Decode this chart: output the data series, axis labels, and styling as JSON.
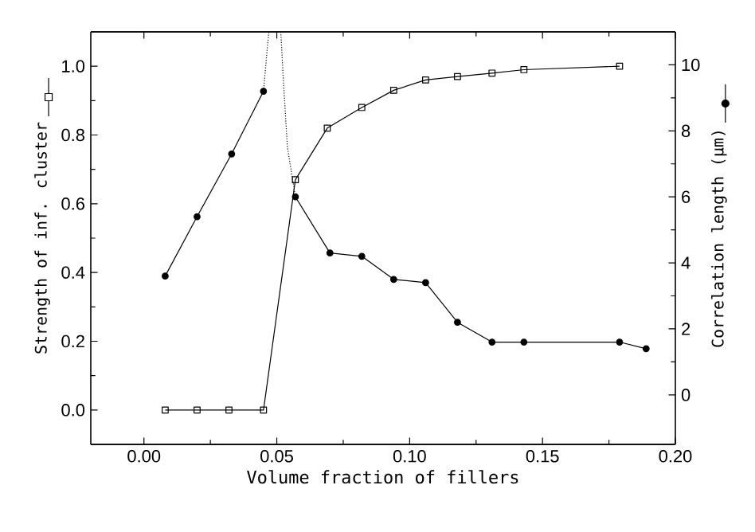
{
  "chart_data": {
    "type": "line",
    "xlabel": "Volume fraction of fillers",
    "ylabel": "Strength of inf. cluster",
    "y2label": "Correlation length (μm)",
    "xlim": [
      -0.02,
      0.2
    ],
    "xticks": [
      {
        "value": 0,
        "label": "0.00"
      },
      {
        "value": 0.05,
        "label": "0.05"
      },
      {
        "value": 0.1,
        "label": "0.10"
      },
      {
        "value": 0.15,
        "label": "0.15"
      },
      {
        "value": 0.2,
        "label": "0.20"
      }
    ],
    "ylim": [
      -0.1,
      1.1
    ],
    "yticks": [
      {
        "value": 0,
        "label": "0.0"
      },
      {
        "value": 0.2,
        "label": "0.2"
      },
      {
        "value": 0.4,
        "label": "0.4"
      },
      {
        "value": 0.6,
        "label": "0.6"
      },
      {
        "value": 0.8,
        "label": "0.8"
      },
      {
        "value": 1,
        "label": "1.0"
      }
    ],
    "y2lim": [
      -1.5,
      11
    ],
    "y2ticks": [
      0,
      2,
      4,
      6,
      8,
      10
    ],
    "line_style": "solid",
    "series": [
      {
        "color": "#000000",
        "marker": "square",
        "x": [
          0.008,
          0.02,
          0.032,
          0.045,
          0.057,
          0.069,
          0.082,
          0.094,
          0.106,
          0.118,
          0.131,
          0.143,
          0.179
        ],
        "values": [
          0,
          0,
          0,
          0,
          0.67,
          0.82,
          0.88,
          0.93,
          0.96,
          0.97,
          0.98,
          0.99,
          1.0
        ]
      },
      {
        "color": "#000000",
        "marker": "circle",
        "axis": "y2",
        "x": [
          0.008,
          0.02,
          0.033,
          0.045,
          0.05,
          0.057,
          0.07,
          0.082,
          0.094,
          0.106,
          0.118,
          0.131,
          0.143,
          0.179,
          0.189
        ],
        "values": [
          3.6,
          5.4,
          7.3,
          9.2,
          null,
          6.0,
          4.3,
          4.2,
          3.5,
          3.4,
          2.2,
          1.6,
          1.6,
          1.6,
          1.4
        ]
      },
      {
        "color": "#000000",
        "marker": "none",
        "line_style": "dotted",
        "axis": "y2",
        "x": [
          0.045,
          0.0462,
          0.047
        ],
        "values": [
          9.2,
          10.3,
          11
        ]
      },
      {
        "color": "#000000",
        "marker": "none",
        "line_style": "dotted",
        "axis": "y2",
        "x": [
          0.0515,
          0.0525,
          0.054,
          0.057
        ],
        "values": [
          11,
          9.5,
          7.5,
          6.0
        ]
      }
    ]
  }
}
